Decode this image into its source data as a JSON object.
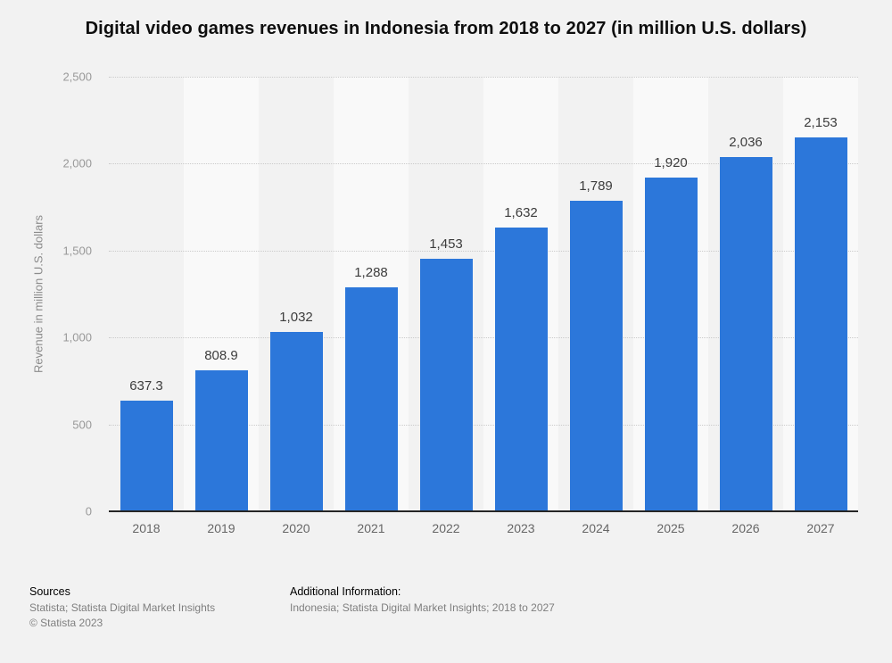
{
  "title": "Digital video games revenues in Indonesia from 2018 to 2027 (in million U.S. dollars)",
  "chart_data": {
    "type": "bar",
    "title": "Digital video games revenues in Indonesia from 2018 to 2027 (in million U.S. dollars)",
    "categories": [
      "2018",
      "2019",
      "2020",
      "2021",
      "2022",
      "2023",
      "2024",
      "2025",
      "2026",
      "2027"
    ],
    "values": [
      637.3,
      808.9,
      1032,
      1288,
      1453,
      1632,
      1789,
      1920,
      2036,
      2153
    ],
    "value_labels": [
      "637.3",
      "808.9",
      "1,032",
      "1,288",
      "1,453",
      "1,632",
      "1,789",
      "1,920",
      "2,036",
      "2,153"
    ],
    "xlabel": "",
    "ylabel": "Revenue in million U.S. dollars",
    "ylim": [
      0,
      2500
    ],
    "yticks": [
      0,
      500,
      1000,
      1500,
      2000,
      2500
    ],
    "ytick_labels": [
      "0",
      "500",
      "1,000",
      "1,500",
      "2,000",
      "2,500"
    ],
    "grid": "horizontal-dotted",
    "legend": "none",
    "bar_color": "#2c77da"
  },
  "colors": {
    "background": "#f2f2f2",
    "band_light": "#f9f9f9",
    "bar": "#2c77da",
    "gridline": "#cbcbcb",
    "axis_line": "#262626"
  },
  "footer": {
    "sources_heading": "Sources",
    "sources_line": "Statista; Statista Digital Market Insights",
    "copyright": "© Statista 2023",
    "additional_heading": "Additional Information:",
    "additional_line": "Indonesia; Statista Digital Market Insights; 2018 to 2027"
  }
}
